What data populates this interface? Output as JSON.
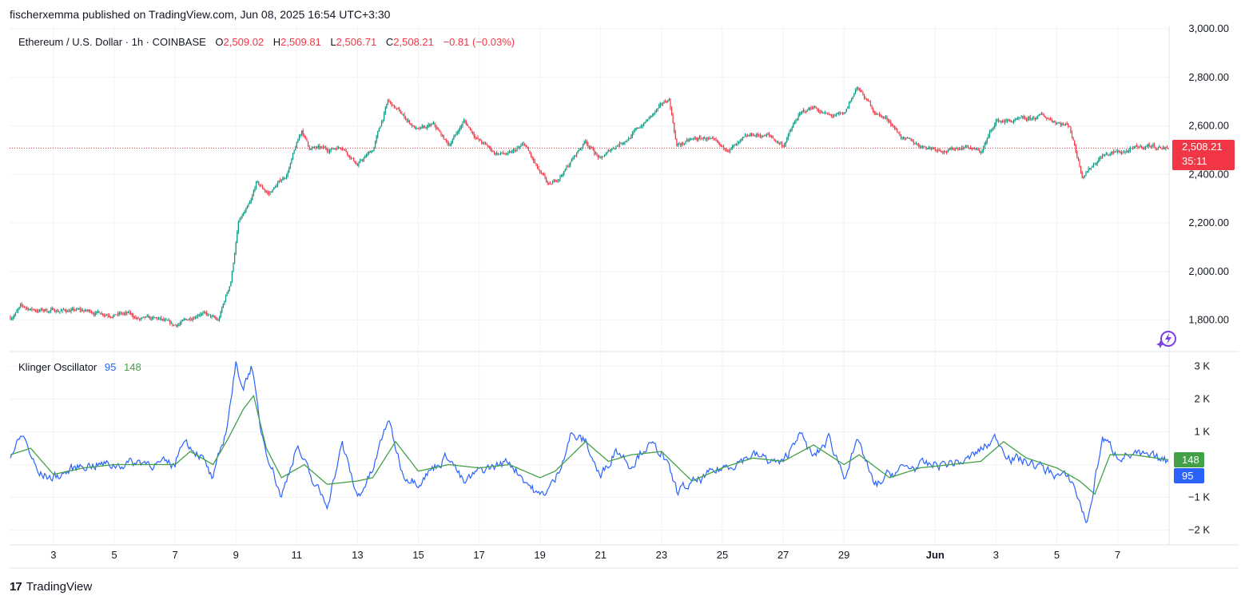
{
  "publisher_line": "fischerxemma published on TradingView.com, Jun 08, 2025 16:54 UTC+3:30",
  "brand": {
    "logo": "17",
    "name": "TradingView"
  },
  "icons": {
    "brand": "tradingview-logo-icon",
    "spark": "spark-icon"
  },
  "colors": {
    "up": "#089981",
    "down": "#f23645",
    "klinger": "#2962ff",
    "signal": "#43a047",
    "grid": "#f0f3fa"
  },
  "legend": {
    "symbol": "Ethereum / U.S. Dollar · 1h · COINBASE",
    "o_label": "O",
    "o_val": "2,509.02",
    "h_label": "H",
    "h_val": "2,509.81",
    "l_label": "L",
    "l_val": "2,506.71",
    "c_label": "C",
    "c_val": "2,508.21",
    "change": "−0.81 (−0.03%)"
  },
  "price_tag": {
    "price": "2,508.21",
    "countdown": "35:11"
  },
  "klinger": {
    "name": "Klinger Oscillator",
    "value": "95",
    "signal": "148"
  },
  "chart_data": [
    {
      "type": "candlestick",
      "title": "Ethereum / U.S. Dollar · 1h · COINBASE",
      "last_price": 2508.21,
      "y_ticks": [
        "3,000.00",
        "2,800.00",
        "2,600.00",
        "2,400.00",
        "2,200.00",
        "2,000.00",
        "1,800.00"
      ],
      "y_tick_values": [
        3000,
        2800,
        2600,
        2400,
        2200,
        2000,
        1800
      ],
      "ylim": [
        1670,
        3000
      ],
      "x_ticks": [
        "3",
        "5",
        "7",
        "9",
        "11",
        "13",
        "15",
        "17",
        "19",
        "21",
        "23",
        "25",
        "27",
        "29",
        "Jun",
        "3",
        "5",
        "7"
      ],
      "x_tick_dates": [
        "2025-05-03",
        "2025-05-05",
        "2025-05-07",
        "2025-05-09",
        "2025-05-11",
        "2025-05-13",
        "2025-05-15",
        "2025-05-17",
        "2025-05-19",
        "2025-05-21",
        "2025-05-23",
        "2025-05-25",
        "2025-05-27",
        "2025-05-29",
        "2025-06-01",
        "2025-06-03",
        "2025-06-05",
        "2025-06-07"
      ],
      "x_range": [
        "2025-05-01 14:00",
        "2025-06-08 16:00"
      ],
      "close_path": [
        [
          "2025-05-01 14:00",
          1810
        ],
        [
          "2025-05-01 22:00",
          1852
        ],
        [
          "2025-05-02 12:00",
          1840
        ],
        [
          "2025-05-03 12:00",
          1840
        ],
        [
          "2025-05-04 12:00",
          1832
        ],
        [
          "2025-05-05 12:00",
          1822
        ],
        [
          "2025-05-05 20:00",
          1800
        ],
        [
          "2025-05-06 12:00",
          1800
        ],
        [
          "2025-05-06 22:00",
          1772
        ],
        [
          "2025-05-07 10:00",
          1800
        ],
        [
          "2025-05-07 20:00",
          1838
        ],
        [
          "2025-05-08 10:00",
          1792
        ],
        [
          "2025-05-08 14:00",
          1860
        ],
        [
          "2025-05-08 20:00",
          1960
        ],
        [
          "2025-05-09 02:00",
          2200
        ],
        [
          "2025-05-09 12:00",
          2280
        ],
        [
          "2025-05-09 16:00",
          2360
        ],
        [
          "2025-05-10 02:00",
          2320
        ],
        [
          "2025-05-10 16:00",
          2400
        ],
        [
          "2025-05-11 04:00",
          2580
        ],
        [
          "2025-05-11 10:00",
          2510
        ],
        [
          "2025-05-12 00:00",
          2500
        ],
        [
          "2025-05-12 12:00",
          2520
        ],
        [
          "2025-05-13 00:00",
          2440
        ],
        [
          "2025-05-13 12:00",
          2500
        ],
        [
          "2025-05-14 00:00",
          2700
        ],
        [
          "2025-05-14 12:00",
          2640
        ],
        [
          "2025-05-15 00:00",
          2580
        ],
        [
          "2025-05-15 12:00",
          2600
        ],
        [
          "2025-05-16 00:00",
          2520
        ],
        [
          "2025-05-16 12:00",
          2620
        ],
        [
          "2025-05-17 00:00",
          2540
        ],
        [
          "2025-05-17 12:00",
          2490
        ],
        [
          "2025-05-18 00:00",
          2480
        ],
        [
          "2025-05-18 12:00",
          2520
        ],
        [
          "2025-05-19 00:00",
          2400
        ],
        [
          "2025-05-19 08:00",
          2345
        ],
        [
          "2025-05-19 20:00",
          2420
        ],
        [
          "2025-05-20 12:00",
          2540
        ],
        [
          "2025-05-21 00:00",
          2460
        ],
        [
          "2025-05-21 12:00",
          2520
        ],
        [
          "2025-05-22 00:00",
          2560
        ],
        [
          "2025-05-22 12:00",
          2620
        ],
        [
          "2025-05-23 00:00",
          2680
        ],
        [
          "2025-05-23 06:00",
          2710
        ],
        [
          "2025-05-23 12:00",
          2520
        ],
        [
          "2025-05-24 00:00",
          2540
        ],
        [
          "2025-05-24 12:00",
          2550
        ],
        [
          "2025-05-25 00:00",
          2500
        ],
        [
          "2025-05-25 12:00",
          2520
        ],
        [
          "2025-05-26 00:00",
          2560
        ],
        [
          "2025-05-26 12:00",
          2560
        ],
        [
          "2025-05-27 00:00",
          2520
        ],
        [
          "2025-05-27 12:00",
          2640
        ],
        [
          "2025-05-28 00:00",
          2680
        ],
        [
          "2025-05-28 12:00",
          2640
        ],
        [
          "2025-05-29 00:00",
          2640
        ],
        [
          "2025-05-29 10:00",
          2760
        ],
        [
          "2025-05-30 00:00",
          2660
        ],
        [
          "2025-05-30 12:00",
          2620
        ],
        [
          "2025-05-31 00:00",
          2540
        ],
        [
          "2025-05-31 12:00",
          2520
        ],
        [
          "2025-06-01 00:00",
          2510
        ],
        [
          "2025-06-01 12:00",
          2500
        ],
        [
          "2025-06-02 00:00",
          2520
        ],
        [
          "2025-06-02 12:00",
          2490
        ],
        [
          "2025-06-03 00:00",
          2620
        ],
        [
          "2025-06-03 12:00",
          2620
        ],
        [
          "2025-06-04 00:00",
          2620
        ],
        [
          "2025-06-04 12:00",
          2640
        ],
        [
          "2025-06-05 00:00",
          2620
        ],
        [
          "2025-06-05 10:00",
          2600
        ],
        [
          "2025-06-05 20:00",
          2400
        ],
        [
          "2025-06-06 12:00",
          2480
        ],
        [
          "2025-06-07 00:00",
          2490
        ],
        [
          "2025-06-07 12:00",
          2500
        ],
        [
          "2025-06-08 00:00",
          2520
        ],
        [
          "2025-06-08 16:00",
          2508
        ]
      ]
    },
    {
      "type": "line",
      "title": "Klinger Oscillator",
      "y_ticks": [
        "3 K",
        "2 K",
        "1 K",
        "",
        "−1 K",
        "−2 K"
      ],
      "y_tick_values": [
        3000,
        2000,
        1000,
        0,
        -1000,
        -2000
      ],
      "ylim": [
        -2400,
        3400
      ],
      "series": [
        {
          "name": "95",
          "color": "#2962ff",
          "points": [
            [
              "2025-05-01 14:00",
              300
            ],
            [
              "2025-05-02 00:00",
              900
            ],
            [
              "2025-05-02 12:00",
              -300
            ],
            [
              "2025-05-03 00:00",
              -400
            ],
            [
              "2025-05-04 00:00",
              0
            ],
            [
              "2025-05-05 00:00",
              0
            ],
            [
              "2025-05-06 00:00",
              100
            ],
            [
              "2025-05-06 12:00",
              0
            ],
            [
              "2025-05-07 00:00",
              0
            ],
            [
              "2025-05-07 06:00",
              800
            ],
            [
              "2025-05-07 20:00",
              300
            ],
            [
              "2025-05-08 06:00",
              -500
            ],
            [
              "2025-05-08 16:00",
              1000
            ],
            [
              "2025-05-09 00:00",
              3000
            ],
            [
              "2025-05-09 06:00",
              2400
            ],
            [
              "2025-05-09 12:00",
              3000
            ],
            [
              "2025-05-09 20:00",
              1000
            ],
            [
              "2025-05-10 12:00",
              -1000
            ],
            [
              "2025-05-11 00:00",
              600
            ],
            [
              "2025-05-11 12:00",
              -500
            ],
            [
              "2025-05-12 00:00",
              -1200
            ],
            [
              "2025-05-12 12:00",
              600
            ],
            [
              "2025-05-13 00:00",
              -1000
            ],
            [
              "2025-05-13 12:00",
              -200
            ],
            [
              "2025-05-14 00:00",
              1400
            ],
            [
              "2025-05-14 12:00",
              -300
            ],
            [
              "2025-05-15 00:00",
              -500
            ],
            [
              "2025-05-16 00:00",
              300
            ],
            [
              "2025-05-16 12:00",
              -600
            ],
            [
              "2025-05-17 00:00",
              -200
            ],
            [
              "2025-05-18 00:00",
              100
            ],
            [
              "2025-05-19 00:00",
              -1000
            ],
            [
              "2025-05-19 12:00",
              -500
            ],
            [
              "2025-05-20 00:00",
              900
            ],
            [
              "2025-05-20 12:00",
              700
            ],
            [
              "2025-05-21 00:00",
              -400
            ],
            [
              "2025-05-21 12:00",
              500
            ],
            [
              "2025-05-22 00:00",
              0
            ],
            [
              "2025-05-22 12:00",
              600
            ],
            [
              "2025-05-23 00:00",
              400
            ],
            [
              "2025-05-23 12:00",
              -800
            ],
            [
              "2025-05-24 00:00",
              -600
            ],
            [
              "2025-05-25 00:00",
              -100
            ],
            [
              "2025-05-26 00:00",
              300
            ],
            [
              "2025-05-27 00:00",
              0
            ],
            [
              "2025-05-27 12:00",
              1000
            ],
            [
              "2025-05-28 00:00",
              200
            ],
            [
              "2025-05-28 12:00",
              800
            ],
            [
              "2025-05-29 00:00",
              -300
            ],
            [
              "2025-05-29 12:00",
              700
            ],
            [
              "2025-05-30 00:00",
              -700
            ],
            [
              "2025-05-30 12:00",
              -300
            ],
            [
              "2025-05-31 00:00",
              -100
            ],
            [
              "2025-06-01 00:00",
              0
            ],
            [
              "2025-06-02 00:00",
              100
            ],
            [
              "2025-06-03 00:00",
              800
            ],
            [
              "2025-06-03 12:00",
              200
            ],
            [
              "2025-06-04 00:00",
              100
            ],
            [
              "2025-06-05 00:00",
              -300
            ],
            [
              "2025-06-05 12:00",
              -500
            ],
            [
              "2025-06-06 00:00",
              -1800
            ],
            [
              "2025-06-06 12:00",
              800
            ],
            [
              "2025-06-07 00:00",
              300
            ],
            [
              "2025-06-07 12:00",
              300
            ],
            [
              "2025-06-08 16:00",
              95
            ]
          ]
        },
        {
          "name": "148",
          "color": "#43a047",
          "points": [
            [
              "2025-05-01 14:00",
              300
            ],
            [
              "2025-05-02 06:00",
              500
            ],
            [
              "2025-05-03 00:00",
              -300
            ],
            [
              "2025-05-04 00:00",
              -100
            ],
            [
              "2025-05-05 00:00",
              0
            ],
            [
              "2025-05-06 00:00",
              0
            ],
            [
              "2025-05-07 00:00",
              0
            ],
            [
              "2025-05-07 12:00",
              400
            ],
            [
              "2025-05-08 06:00",
              0
            ],
            [
              "2025-05-08 18:00",
              800
            ],
            [
              "2025-05-09 06:00",
              1700
            ],
            [
              "2025-05-09 14:00",
              2100
            ],
            [
              "2025-05-10 00:00",
              500
            ],
            [
              "2025-05-10 12:00",
              -400
            ],
            [
              "2025-05-11 06:00",
              0
            ],
            [
              "2025-05-12 00:00",
              -600
            ],
            [
              "2025-05-13 00:00",
              -500
            ],
            [
              "2025-05-13 12:00",
              -400
            ],
            [
              "2025-05-14 06:00",
              700
            ],
            [
              "2025-05-15 00:00",
              -200
            ],
            [
              "2025-05-16 00:00",
              0
            ],
            [
              "2025-05-17 00:00",
              -100
            ],
            [
              "2025-05-18 00:00",
              0
            ],
            [
              "2025-05-19 00:00",
              -400
            ],
            [
              "2025-05-19 12:00",
              -200
            ],
            [
              "2025-05-20 12:00",
              700
            ],
            [
              "2025-05-21 06:00",
              100
            ],
            [
              "2025-05-22 00:00",
              300
            ],
            [
              "2025-05-23 00:00",
              400
            ],
            [
              "2025-05-24 00:00",
              -500
            ],
            [
              "2025-05-25 00:00",
              -100
            ],
            [
              "2025-05-26 00:00",
              200
            ],
            [
              "2025-05-27 00:00",
              100
            ],
            [
              "2025-05-28 00:00",
              600
            ],
            [
              "2025-05-29 00:00",
              0
            ],
            [
              "2025-05-29 12:00",
              300
            ],
            [
              "2025-05-30 12:00",
              -400
            ],
            [
              "2025-05-31 12:00",
              -100
            ],
            [
              "2025-06-01 12:00",
              0
            ],
            [
              "2025-06-02 12:00",
              100
            ],
            [
              "2025-06-03 06:00",
              700
            ],
            [
              "2025-06-04 00:00",
              200
            ],
            [
              "2025-06-05 00:00",
              -100
            ],
            [
              "2025-06-05 18:00",
              -500
            ],
            [
              "2025-06-06 06:00",
              -900
            ],
            [
              "2025-06-06 18:00",
              300
            ],
            [
              "2025-06-07 12:00",
              300
            ],
            [
              "2025-06-08 16:00",
              148
            ]
          ]
        }
      ]
    }
  ]
}
